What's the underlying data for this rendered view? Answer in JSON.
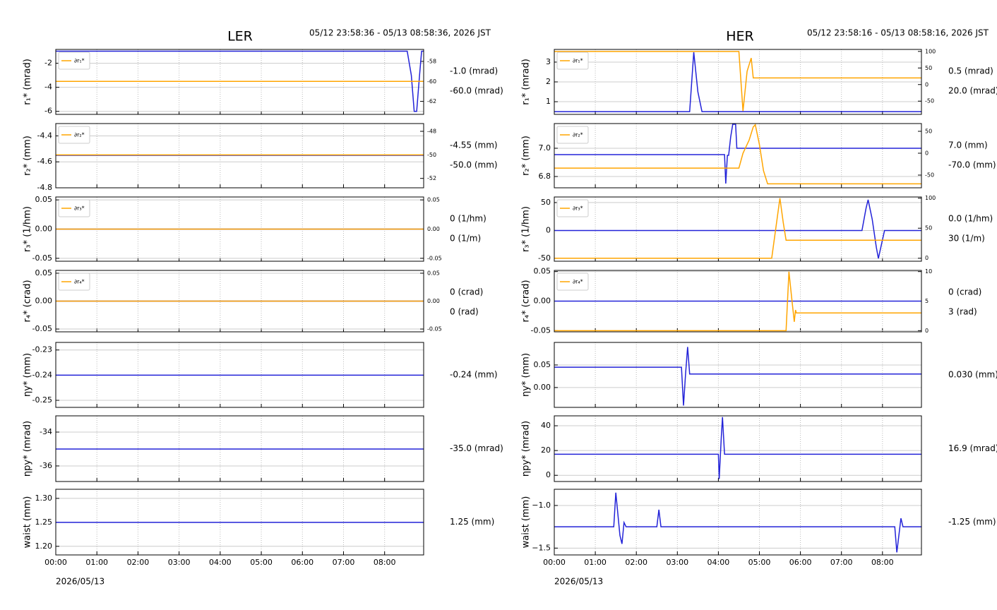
{
  "columns": [
    {
      "title": "LER",
      "time_range": "05/12 23:58:36 - 05/13 08:58:36, 2026 JST",
      "date": "2026/05/13"
    },
    {
      "title": "HER",
      "time_range": "05/12 23:58:16 - 05/13 08:58:16, 2026 JST",
      "date": "2026/05/13"
    }
  ],
  "chart_data": [
    {
      "type": "line",
      "ylabel": "r₁* (mrad)",
      "xlim": [
        0,
        8.95
      ],
      "xticks": [
        0,
        1,
        2,
        3,
        4,
        5,
        6,
        7,
        8
      ],
      "ylim": [
        -6.25,
        -0.85
      ],
      "yticks": [
        -6,
        -4,
        -2
      ],
      "y2lim": [
        -63.3,
        -56.8
      ],
      "y2ticks": [
        -62,
        -60,
        -58
      ],
      "grid": true,
      "legend": "upper left",
      "series": [
        {
          "color": "#2323d8",
          "x": [
            0,
            8.55,
            8.65,
            8.72,
            8.78,
            8.85,
            8.9,
            8.95
          ],
          "values": [
            -1,
            -1,
            -3,
            -6,
            -6,
            -3,
            -1,
            -1
          ],
          "value_label": "-1.0 (mrad)"
        },
        {
          "name": "∂r₁*",
          "color": "#ffa500",
          "axis": "y2",
          "x": [
            0,
            8.95
          ],
          "values": [
            -60,
            -60
          ],
          "value_label": "-60.0 (mrad)"
        }
      ]
    },
    {
      "type": "line",
      "ylabel": "r₂* (mm)",
      "xlim": [
        0,
        8.95
      ],
      "xticks": [
        0,
        1,
        2,
        3,
        4,
        5,
        6,
        7,
        8
      ],
      "ylim": [
        -4.8,
        -4.305
      ],
      "yticks": [
        -4.8,
        -4.6,
        -4.4
      ],
      "y2lim": [
        -52.8,
        -47.34
      ],
      "y2ticks": [
        -52,
        -50,
        -48
      ],
      "grid": true,
      "legend": "upper left",
      "series": [
        {
          "color": "#2323d8",
          "x": [
            0,
            8.95
          ],
          "values": [
            -4.55,
            -4.55
          ],
          "value_label": "-4.55 (mm)"
        },
        {
          "name": "∂r₂*",
          "color": "#ffa500",
          "axis": "y2",
          "x": [
            0,
            8.95
          ],
          "values": [
            -50,
            -50
          ],
          "value_label": "-50.0 (mm)"
        }
      ]
    },
    {
      "type": "line",
      "ylabel": "r₃* (1/hm)",
      "xlim": [
        0,
        8.95
      ],
      "xticks": [
        0,
        1,
        2,
        3,
        4,
        5,
        6,
        7,
        8
      ],
      "ylim": [
        -0.055,
        0.055
      ],
      "yticks": [
        -0.05,
        {
          "value": 0,
          "label": "0.00"
        },
        0.05
      ],
      "y2lim": [
        -0.055,
        0.055
      ],
      "y2ticks": [
        -0.05,
        {
          "value": 0,
          "label": "0.00"
        },
        0.05
      ],
      "grid": true,
      "legend": "upper left",
      "series": [
        {
          "color": "#2323d8",
          "x": [
            0,
            8.95
          ],
          "values": [
            0,
            0
          ],
          "value_label": "0 (1/hm)"
        },
        {
          "name": "∂r₃*",
          "color": "#ffa500",
          "axis": "y2",
          "x": [
            0,
            8.95
          ],
          "values": [
            0,
            0
          ],
          "value_label": "0 (1/m)"
        }
      ]
    },
    {
      "type": "line",
      "ylabel": "r₄* (crad)",
      "xlim": [
        0,
        8.95
      ],
      "xticks": [
        0,
        1,
        2,
        3,
        4,
        5,
        6,
        7,
        8
      ],
      "ylim": [
        -0.055,
        0.055
      ],
      "yticks": [
        -0.05,
        {
          "value": 0,
          "label": "0.00"
        },
        0.05
      ],
      "y2lim": [
        -0.055,
        0.055
      ],
      "y2ticks": [
        -0.05,
        {
          "value": 0,
          "label": "0.00"
        },
        0.05
      ],
      "grid": true,
      "legend": "upper left",
      "series": [
        {
          "color": "#2323d8",
          "x": [
            0,
            8.95
          ],
          "values": [
            0,
            0
          ],
          "value_label": "0 (crad)"
        },
        {
          "name": "∂r₄*",
          "color": "#ffa500",
          "axis": "y2",
          "x": [
            0,
            8.95
          ],
          "values": [
            0,
            0
          ],
          "value_label": "0 (rad)"
        }
      ]
    },
    {
      "type": "line",
      "ylabel": "ηy* (mm)",
      "xlim": [
        0,
        8.95
      ],
      "xticks": [
        0,
        1,
        2,
        3,
        4,
        5,
        6,
        7,
        8
      ],
      "ylim": [
        -0.2528,
        -0.227
      ],
      "yticks": [
        -0.25,
        -0.24,
        -0.23
      ],
      "grid": true,
      "series": [
        {
          "color": "#2323d8",
          "x": [
            0,
            8.95
          ],
          "values": [
            -0.24,
            -0.24
          ],
          "value_label": "-0.24 (mm)"
        }
      ]
    },
    {
      "type": "line",
      "ylabel": "ηpy* (mrad)",
      "xlim": [
        0,
        8.95
      ],
      "xticks": [
        0,
        1,
        2,
        3,
        4,
        5,
        6,
        7,
        8
      ],
      "ylim": [
        -36.92,
        -33.04
      ],
      "yticks": [
        -36,
        -34
      ],
      "grid": true,
      "series": [
        {
          "color": "#2323d8",
          "x": [
            0,
            8.95
          ],
          "values": [
            -35,
            -35
          ],
          "value_label": "-35.0 (mrad)"
        }
      ]
    },
    {
      "type": "line",
      "ylabel": "waist (mm)",
      "xlim": [
        0,
        8.95
      ],
      "xticks": [
        {
          "value": 0,
          "label": "00:00"
        },
        {
          "value": 1,
          "label": "01:00"
        },
        {
          "value": 2,
          "label": "02:00"
        },
        {
          "value": 3,
          "label": "03:00"
        },
        {
          "value": 4,
          "label": "04:00"
        },
        {
          "value": 5,
          "label": "05:00"
        },
        {
          "value": 6,
          "label": "06:00"
        },
        {
          "value": 7,
          "label": "07:00"
        },
        {
          "value": 8,
          "label": "08:00"
        }
      ],
      "ylim": [
        1.182,
        1.319
      ],
      "yticks": [
        {
          "value": 1.2,
          "label": "1.20"
        },
        1.25,
        {
          "value": 1.3,
          "label": "1.30"
        }
      ],
      "grid": true,
      "series": [
        {
          "color": "#2323d8",
          "x": [
            0,
            8.95
          ],
          "values": [
            1.25,
            1.25
          ],
          "value_label": "1.25 (mm)"
        }
      ]
    },
    {
      "type": "line",
      "ylabel": "r₁* (mrad)",
      "xlim": [
        0,
        8.95
      ],
      "xticks": [
        0,
        1,
        2,
        3,
        4,
        5,
        6,
        7,
        8
      ],
      "ylim": [
        0.36,
        3.64
      ],
      "yticks": [
        1,
        2,
        3
      ],
      "y2lim": [
        -90,
        106
      ],
      "y2ticks": [
        -50,
        0,
        50,
        100
      ],
      "grid": true,
      "legend": "upper left",
      "series": [
        {
          "color": "#2323d8",
          "x": [
            0,
            3.3,
            3.35,
            3.4,
            3.45,
            3.5,
            3.55,
            3.6,
            8.95
          ],
          "values": [
            0.5,
            0.5,
            2,
            3.5,
            2.5,
            1.5,
            1,
            0.5,
            0.5
          ],
          "value_label": "0.5 (mrad)"
        },
        {
          "name": "∂r₁*",
          "color": "#ffa500",
          "axis": "y2",
          "x": [
            0,
            4.5,
            4.6,
            4.7,
            4.8,
            4.85,
            8.95
          ],
          "values": [
            100,
            100,
            -80,
            40,
            80,
            20,
            20
          ],
          "value_label": "20.0 (mrad)"
        }
      ]
    },
    {
      "type": "line",
      "ylabel": "r₂* (mm)",
      "xlim": [
        0,
        8.95
      ],
      "xticks": [
        0,
        1,
        2,
        3,
        4,
        5,
        6,
        7,
        8
      ],
      "ylim": [
        6.72,
        7.175
      ],
      "yticks": [
        6.8,
        {
          "value": 7,
          "label": "7.0"
        }
      ],
      "y2lim": [
        -79,
        67.7
      ],
      "y2ticks": [
        -50,
        0,
        50
      ],
      "grid": true,
      "legend": "upper left",
      "series": [
        {
          "color": "#2323d8",
          "x": [
            0,
            4.15,
            4.18,
            4.22,
            4.25,
            4.3,
            4.35,
            4.42,
            4.45,
            8.95
          ],
          "values": [
            6.955,
            6.955,
            6.75,
            6.95,
            6.95,
            7.08,
            7.17,
            7.17,
            7.0,
            7.0
          ],
          "value_label": "7.0 (mm)"
        },
        {
          "name": "∂r₂*",
          "color": "#ffa500",
          "axis": "y2",
          "x": [
            0,
            4.5,
            4.6,
            4.75,
            4.85,
            4.9,
            5.0,
            5.1,
            5.2,
            8.95
          ],
          "values": [
            -34,
            -34,
            0,
            30,
            60,
            65,
            20,
            -40,
            -70,
            -70
          ],
          "value_label": "-70.0 (mm)"
        }
      ]
    },
    {
      "type": "line",
      "ylabel": "r₃* (1/hm)",
      "xlim": [
        0,
        8.95
      ],
      "xticks": [
        0,
        1,
        2,
        3,
        4,
        5,
        6,
        7,
        8
      ],
      "ylim": [
        -55,
        60
      ],
      "yticks": [
        -50,
        0,
        50
      ],
      "y2lim": [
        -5,
        102
      ],
      "y2ticks": [
        0,
        50,
        100
      ],
      "grid": true,
      "legend": "upper left",
      "series": [
        {
          "color": "#2323d8",
          "x": [
            0,
            7.5,
            7.6,
            7.65,
            7.75,
            7.85,
            7.9,
            8.05,
            8.95
          ],
          "values": [
            0,
            0,
            40,
            55,
            20,
            -30,
            -50,
            0,
            0
          ],
          "value_label": "0.0 (1/hm)"
        },
        {
          "name": "∂r₃*",
          "color": "#ffa500",
          "axis": "y2",
          "x": [
            0,
            5.3,
            5.4,
            5.5,
            5.58,
            5.65,
            8.95
          ],
          "values": [
            0,
            0,
            50,
            100,
            60,
            30,
            30
          ],
          "value_label": "30 (1/m)"
        }
      ]
    },
    {
      "type": "line",
      "ylabel": "r₄* (crad)",
      "xlim": [
        0,
        8.95
      ],
      "xticks": [
        0,
        1,
        2,
        3,
        4,
        5,
        6,
        7,
        8
      ],
      "ylim": [
        -0.052,
        0.052
      ],
      "yticks": [
        -0.05,
        {
          "value": 0,
          "label": "0.00"
        },
        0.05
      ],
      "y2lim": [
        -0.2,
        10.2
      ],
      "y2ticks": [
        0,
        5,
        10
      ],
      "grid": true,
      "legend": "upper left",
      "series": [
        {
          "color": "#2323d8",
          "x": [
            0,
            8.95
          ],
          "values": [
            0,
            0
          ],
          "value_label": "0 (crad)"
        },
        {
          "name": "∂r₄*",
          "color": "#ffa500",
          "axis": "y2",
          "x": [
            0,
            5.65,
            5.72,
            5.78,
            5.85,
            5.88,
            5.9,
            8.95
          ],
          "values": [
            0,
            0,
            10,
            6,
            1.5,
            3.5,
            3,
            3
          ],
          "value_label": "3 (rad)"
        }
      ]
    },
    {
      "type": "line",
      "ylabel": "ηy* (mm)",
      "xlim": [
        0,
        8.95
      ],
      "xticks": [
        0,
        1,
        2,
        3,
        4,
        5,
        6,
        7,
        8
      ],
      "ylim": [
        -0.044,
        0.1
      ],
      "yticks": [
        {
          "value": 0,
          "label": "0.00"
        },
        0.05
      ],
      "grid": true,
      "series": [
        {
          "color": "#2323d8",
          "x": [
            0,
            3.1,
            3.15,
            3.2,
            3.25,
            3.3,
            8.95
          ],
          "values": [
            0.045,
            0.045,
            -0.04,
            0.03,
            0.09,
            0.03,
            0.03
          ],
          "value_label": "0.030 (mm)"
        }
      ]
    },
    {
      "type": "line",
      "ylabel": "ηpy* (mrad)",
      "xlim": [
        0,
        8.95
      ],
      "xticks": [
        0,
        1,
        2,
        3,
        4,
        5,
        6,
        7,
        8
      ],
      "ylim": [
        -5,
        48
      ],
      "yticks": [
        0,
        20,
        40
      ],
      "grid": true,
      "series": [
        {
          "color": "#2323d8",
          "x": [
            0,
            4.0,
            4.02,
            4.07,
            4.1,
            4.15,
            8.95
          ],
          "values": [
            17,
            17,
            -3,
            30,
            47,
            17,
            17
          ],
          "value_label": "16.9 (mrad)"
        }
      ]
    },
    {
      "type": "line",
      "ylabel": "waist (mm)",
      "xlim": [
        0,
        8.95
      ],
      "xticks": [
        {
          "value": 0,
          "label": "00:00"
        },
        {
          "value": 1,
          "label": "01:00"
        },
        {
          "value": 2,
          "label": "02:00"
        },
        {
          "value": 3,
          "label": "03:00"
        },
        {
          "value": 4,
          "label": "04:00"
        },
        {
          "value": 5,
          "label": "05:00"
        },
        {
          "value": 6,
          "label": "06:00"
        },
        {
          "value": 7,
          "label": "07:00"
        },
        {
          "value": 8,
          "label": "08:00"
        }
      ],
      "ylim": [
        -1.58,
        -0.81
      ],
      "yticks": [
        {
          "value": -1.5,
          "label": "−1.5"
        },
        {
          "value": -1,
          "label": "−1.0"
        }
      ],
      "grid": true,
      "series": [
        {
          "color": "#2323d8",
          "x": [
            0,
            1.45,
            1.5,
            1.55,
            1.6,
            1.65,
            1.7,
            1.75,
            2.5,
            2.55,
            2.6,
            8.3,
            8.35,
            8.4,
            8.45,
            8.5,
            8.95
          ],
          "values": [
            -1.25,
            -1.25,
            -0.85,
            -1.1,
            -1.35,
            -1.45,
            -1.2,
            -1.25,
            -1.25,
            -1.05,
            -1.25,
            -1.25,
            -1.55,
            -1.35,
            -1.15,
            -1.25,
            -1.25
          ],
          "value_label": "-1.25 (mm)"
        }
      ]
    }
  ]
}
